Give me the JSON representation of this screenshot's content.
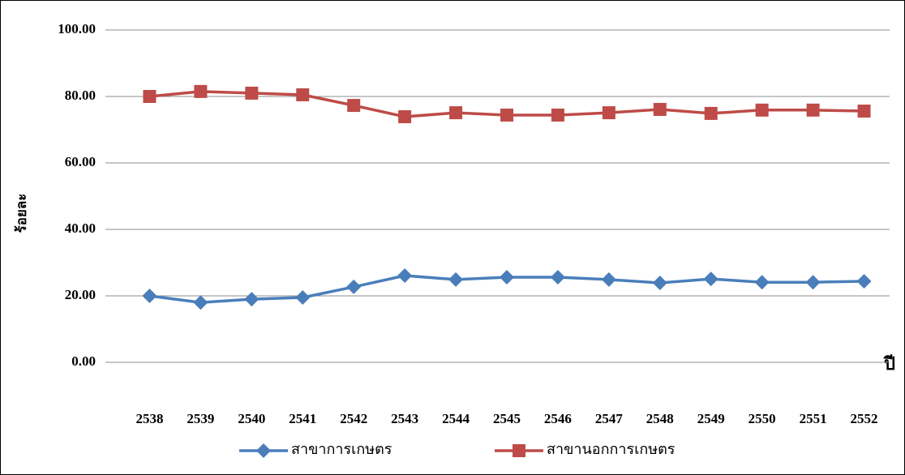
{
  "chart_data": {
    "type": "line",
    "y_label": "ร้อยละ",
    "x_label": "ปี",
    "categories": [
      "2538",
      "2539",
      "2540",
      "2541",
      "2542",
      "2543",
      "2544",
      "2545",
      "2546",
      "2547",
      "2548",
      "2549",
      "2550",
      "2551",
      "2552"
    ],
    "series": [
      {
        "name": "สาขาการเกษตร",
        "color": "#4a7ebb",
        "marker": "diamond",
        "values": [
          20.0,
          18.0,
          19.0,
          19.5,
          22.7,
          26.1,
          24.9,
          25.6,
          25.6,
          24.9,
          23.9,
          25.1,
          24.1,
          24.1,
          24.4
        ]
      },
      {
        "name": "สาขานอกการเกษตร",
        "color": "#be4b48",
        "marker": "square",
        "values": [
          80.0,
          81.5,
          81.0,
          80.5,
          77.3,
          73.9,
          75.1,
          74.4,
          74.4,
          75.1,
          76.1,
          74.9,
          75.9,
          75.9,
          75.6
        ]
      }
    ],
    "ylim": [
      0,
      100
    ],
    "yticks": [
      {
        "value": 0,
        "label": "0.00"
      },
      {
        "value": 20,
        "label": "20.00"
      },
      {
        "value": 40,
        "label": "40.00"
      },
      {
        "value": 60,
        "label": "60.00"
      },
      {
        "value": 80,
        "label": "80.00"
      },
      {
        "value": 100,
        "label": "100.00"
      }
    ],
    "grid": true,
    "legend": "bottom"
  }
}
